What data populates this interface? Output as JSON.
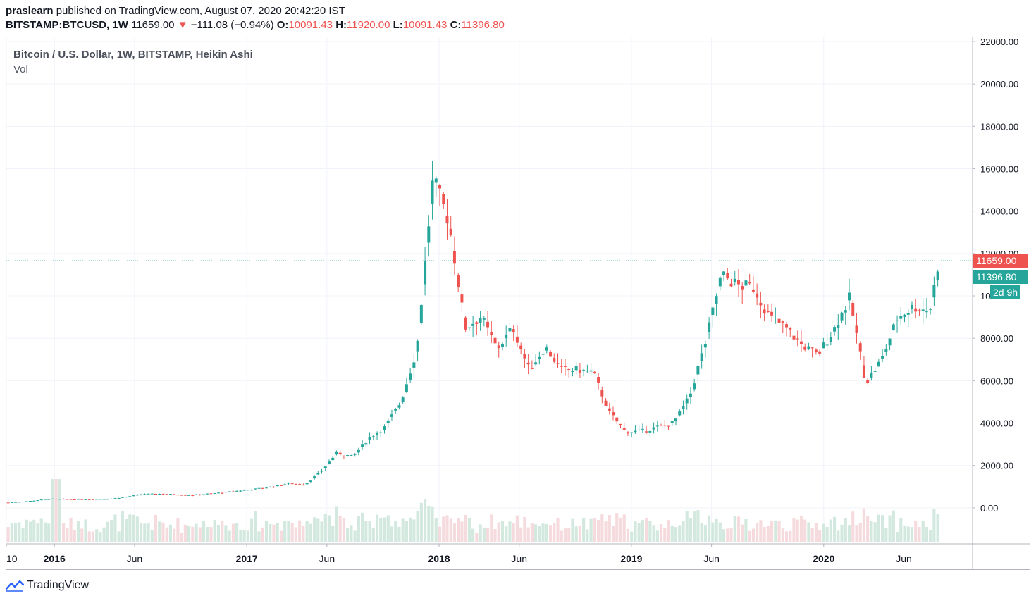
{
  "header": {
    "author": "praslearn",
    "published_text": "published on TradingView.com, August 07, 2020 20:42:20 IST",
    "symbol": "BITSTAMP:BTCUSD, 1W",
    "last": "11659.00",
    "change_arrow": "▼",
    "change": "−111.08 (−0.94%)",
    "o_label": "O:",
    "o_value": "10091.43",
    "h_label": "H:",
    "h_value": "11920.00",
    "l_label": "L:",
    "l_value": "10091.43",
    "c_label": "C:",
    "c_value": "11396.80"
  },
  "legend": {
    "title": "Bitcoin / U.S. Dollar, 1W, BITSTAMP, Heikin Ashi",
    "volume_label": "Vol"
  },
  "price_tags": {
    "last_price": "11659.00",
    "close_price": "11396.80",
    "countdown": "2d 9h"
  },
  "footer": {
    "brand": "TradingView"
  },
  "colors": {
    "up": "#26a69a",
    "down": "#ef5350",
    "vol_up": "#d3e9df",
    "vol_down": "#f6dbde",
    "grid": "#f0f3fa",
    "axis_text": "#131722"
  },
  "chart_data": {
    "type": "candlestick",
    "x_tick_labels": [
      "10",
      "2016",
      "Jun",
      "2017",
      "Jun",
      "2018",
      "Jun",
      "2019",
      "Jun",
      "2020",
      "Jun"
    ],
    "y_tick_labels": [
      "0.00",
      "2000.00",
      "4000.00",
      "6000.00",
      "8000.00",
      "10000.00",
      "12000.00",
      "14000.00",
      "16000.00",
      "18000.00",
      "20000.00",
      "22000.00"
    ],
    "y_ticks": [
      0,
      2000,
      4000,
      6000,
      8000,
      10000,
      12000,
      14000,
      16000,
      18000,
      20000,
      22000
    ],
    "ylim": [
      -1700,
      22200
    ],
    "x_range": [
      "2015-10",
      "2020-08"
    ],
    "current_price_line": 11659,
    "price_keypoints": [
      [
        "2015-10",
        250
      ],
      [
        "2015-11",
        330
      ],
      [
        "2015-12",
        420
      ],
      [
        "2016-02",
        400
      ],
      [
        "2016-04",
        430
      ],
      [
        "2016-06",
        650
      ],
      [
        "2016-07",
        660
      ],
      [
        "2016-09",
        600
      ],
      [
        "2016-11",
        730
      ],
      [
        "2017-01",
        900
      ],
      [
        "2017-02",
        1000
      ],
      [
        "2017-03",
        1150
      ],
      [
        "2017-04",
        1100
      ],
      [
        "2017-05",
        1700
      ],
      [
        "2017-06",
        2600
      ],
      [
        "2017-07",
        2400
      ],
      [
        "2017-08",
        3300
      ],
      [
        "2017-09",
        3800
      ],
      [
        "2017-10",
        5000
      ],
      [
        "2017-11",
        7500
      ],
      [
        "2017-12",
        15500
      ],
      [
        "2018-01",
        13500
      ],
      [
        "2018-02",
        8500
      ],
      [
        "2018-03",
        9000
      ],
      [
        "2018-04",
        7500
      ],
      [
        "2018-05",
        8500
      ],
      [
        "2018-06",
        6500
      ],
      [
        "2018-07",
        7600
      ],
      [
        "2018-08",
        6500
      ],
      [
        "2018-09",
        6500
      ],
      [
        "2018-10",
        6400
      ],
      [
        "2018-11",
        4500
      ],
      [
        "2018-12",
        3600
      ],
      [
        "2019-01",
        3600
      ],
      [
        "2019-02",
        3800
      ],
      [
        "2019-03",
        4000
      ],
      [
        "2019-04",
        5200
      ],
      [
        "2019-05",
        7800
      ],
      [
        "2019-06",
        11000
      ],
      [
        "2019-07",
        10500
      ],
      [
        "2019-08",
        10400
      ],
      [
        "2019-09",
        9000
      ],
      [
        "2019-10",
        8500
      ],
      [
        "2019-11",
        7700
      ],
      [
        "2019-12",
        7200
      ],
      [
        "2020-01",
        8400
      ],
      [
        "2020-02",
        9900
      ],
      [
        "2020-03",
        5900
      ],
      [
        "2020-04",
        7000
      ],
      [
        "2020-05",
        9000
      ],
      [
        "2020-06",
        9500
      ],
      [
        "2020-07",
        9300
      ],
      [
        "2020-08",
        11400
      ]
    ],
    "volume_spikes": [
      [
        "2016-01",
        4200
      ]
    ]
  }
}
